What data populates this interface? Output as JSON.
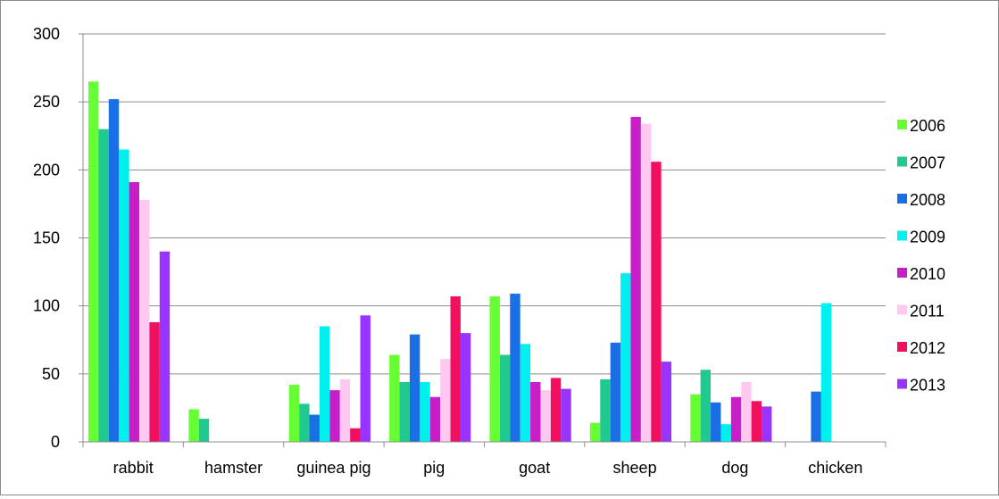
{
  "chart_data": {
    "type": "bar",
    "categories": [
      "rabbit",
      "hamster",
      "guinea pig",
      "pig",
      "goat",
      "sheep",
      "dog",
      "chicken"
    ],
    "series": [
      {
        "name": "2006",
        "color": "#66ff33",
        "values": [
          265,
          24,
          42,
          64,
          107,
          14,
          35,
          0
        ]
      },
      {
        "name": "2007",
        "color": "#1fc98f",
        "values": [
          230,
          17,
          28,
          44,
          64,
          46,
          53,
          0
        ]
      },
      {
        "name": "2008",
        "color": "#1a6fe6",
        "values": [
          252,
          0,
          20,
          79,
          109,
          73,
          29,
          37
        ]
      },
      {
        "name": "2009",
        "color": "#00f0f0",
        "values": [
          215,
          0,
          85,
          44,
          72,
          124,
          13,
          102
        ]
      },
      {
        "name": "2010",
        "color": "#c81ec8",
        "values": [
          191,
          0,
          38,
          33,
          44,
          239,
          33,
          0
        ]
      },
      {
        "name": "2011",
        "color": "#ffc8f0",
        "values": [
          178,
          0,
          46,
          61,
          38,
          234,
          44,
          0
        ]
      },
      {
        "name": "2012",
        "color": "#f0105f",
        "values": [
          88,
          0,
          10,
          107,
          47,
          206,
          30,
          0
        ]
      },
      {
        "name": "2013",
        "color": "#9933ff",
        "values": [
          140,
          0,
          93,
          80,
          39,
          59,
          26,
          0
        ]
      }
    ],
    "ylim": [
      0,
      300
    ],
    "yticks": [
      "0",
      "50",
      "100",
      "150",
      "200",
      "250",
      "300"
    ],
    "grid": true,
    "legend": "right"
  }
}
